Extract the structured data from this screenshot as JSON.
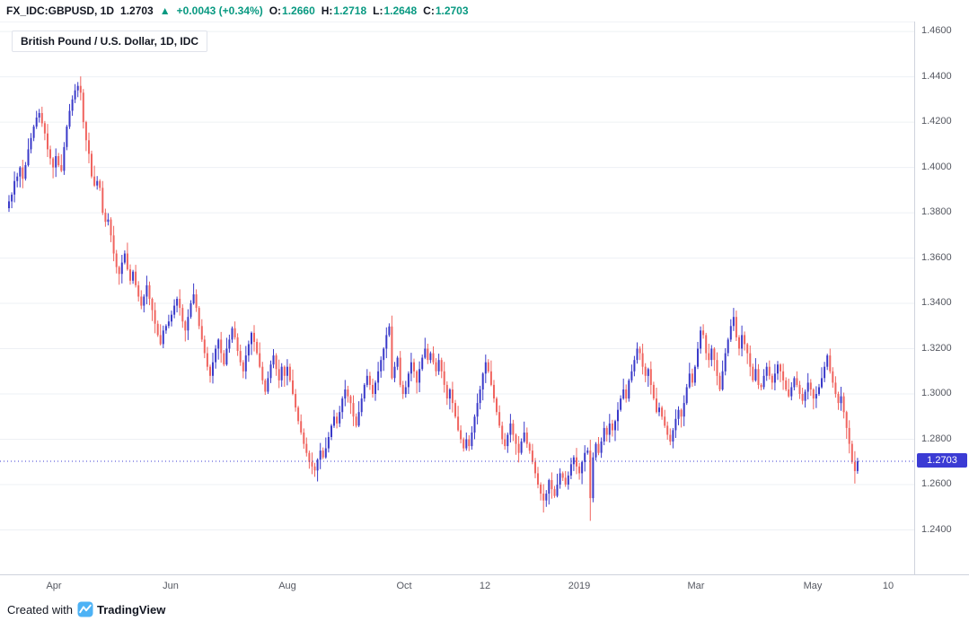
{
  "header": {
    "symbol": "FX_IDC:GBPUSD, 1D",
    "last_price": "1.2703",
    "direction_icon": "▲",
    "change": "+0.0043 (+0.34%)",
    "ohlc": [
      {
        "label": "O:",
        "value": "1.2660"
      },
      {
        "label": "H:",
        "value": "1.2718"
      },
      {
        "label": "L:",
        "value": "1.2648"
      },
      {
        "label": "C:",
        "value": "1.2703"
      }
    ]
  },
  "legend": {
    "title": "British Pound / U.S. Dollar, 1D, IDC"
  },
  "footer": {
    "created_with": "Created with",
    "brand": "TradingView"
  },
  "colors": {
    "up": "#3a3ac9",
    "down": "#f0645f",
    "grid": "#edf0f4",
    "axis_text": "#555861",
    "green": "#089981",
    "price_line": "#3b3bd4",
    "chip_bg": "#3b3bd4",
    "brand_blue": "#43a5e8"
  },
  "chart_data": {
    "type": "candlestick",
    "title": "British Pound / U.S. Dollar, 1D, IDC",
    "symbol": "GBPUSD",
    "exchange": "IDC",
    "timeframe": "1D",
    "grid": true,
    "ylim": [
      1.22,
      1.464
    ],
    "y_ticks": [
      "1.4600",
      "1.4400",
      "1.4200",
      "1.4000",
      "1.3800",
      "1.3600",
      "1.3400",
      "1.3200",
      "1.3000",
      "1.2800",
      "1.2600",
      "1.2400"
    ],
    "x_labels": [
      {
        "text": "Apr",
        "f": 0.059
      },
      {
        "text": "Jun",
        "f": 0.187
      },
      {
        "text": "Aug",
        "f": 0.314
      },
      {
        "text": "Oct",
        "f": 0.442
      },
      {
        "text": "12",
        "f": 0.53
      },
      {
        "text": "2019",
        "f": 0.634
      },
      {
        "text": "Mar",
        "f": 0.761
      },
      {
        "text": "May",
        "f": 0.889
      },
      {
        "text": "10",
        "f": 0.972
      }
    ],
    "price_line": {
      "value": 1.2703,
      "label": "1.2703"
    },
    "last_candle": {
      "open": 1.266,
      "high": 1.2718,
      "low": 1.2648,
      "close": 1.2703
    },
    "key_points": {
      "high_2018_apr": 1.4377,
      "low_2018_aug": 1.2662,
      "low_2018_dec": 1.2477,
      "low_2019_jan_flash": 1.244,
      "high_2019_mar": 1.338,
      "low_2019_may": 1.2605
    },
    "closes": [
      1.385,
      1.388,
      1.394,
      1.396,
      1.4,
      1.395,
      1.401,
      1.408,
      1.413,
      1.418,
      1.422,
      1.424,
      1.4195,
      1.415,
      1.408,
      1.404,
      1.4,
      1.405,
      1.401,
      1.3985,
      1.409,
      1.418,
      1.425,
      1.43,
      1.434,
      1.436,
      1.433,
      1.42,
      1.412,
      1.406,
      1.396,
      1.392,
      1.394,
      1.391,
      1.38,
      1.376,
      1.377,
      1.37,
      1.362,
      1.356,
      1.353,
      1.358,
      1.362,
      1.355,
      1.35,
      1.354,
      1.348,
      1.343,
      1.339,
      1.343,
      1.348,
      1.342,
      1.337,
      1.331,
      1.326,
      1.322,
      1.328,
      1.33,
      1.332,
      1.335,
      1.339,
      1.342,
      1.338,
      1.332,
      1.328,
      1.334,
      1.34,
      1.344,
      1.338,
      1.33,
      1.324,
      1.318,
      1.312,
      1.308,
      1.314,
      1.32,
      1.324,
      1.318,
      1.313,
      1.32,
      1.324,
      1.329,
      1.325,
      1.319,
      1.314,
      1.31,
      1.317,
      1.322,
      1.327,
      1.323,
      1.318,
      1.312,
      1.306,
      1.301,
      1.307,
      1.313,
      1.317,
      1.311,
      1.306,
      1.312,
      1.308,
      1.312,
      1.306,
      1.3,
      1.294,
      1.288,
      1.283,
      1.278,
      1.274,
      1.27,
      1.268,
      1.2662,
      1.271,
      1.275,
      1.272,
      1.276,
      1.281,
      1.286,
      1.29,
      1.287,
      1.292,
      1.298,
      1.302,
      1.299,
      1.296,
      1.29,
      1.286,
      1.292,
      1.298,
      1.304,
      1.308,
      1.304,
      1.3,
      1.305,
      1.31,
      1.315,
      1.32,
      1.326,
      1.3298,
      1.307,
      1.312,
      1.316,
      1.304,
      1.3,
      1.303,
      1.309,
      1.314,
      1.31,
      1.305,
      1.311,
      1.316,
      1.32,
      1.315,
      1.318,
      1.314,
      1.31,
      1.315,
      1.31,
      1.304,
      1.298,
      1.302,
      1.296,
      1.29,
      1.284,
      1.28,
      1.276,
      1.28,
      1.277,
      1.283,
      1.29,
      1.296,
      1.302,
      1.309,
      1.314,
      1.31,
      1.304,
      1.298,
      1.292,
      1.286,
      1.28,
      1.277,
      1.282,
      1.287,
      1.282,
      1.278,
      1.274,
      1.279,
      1.283,
      1.278,
      1.275,
      1.27,
      1.265,
      1.26,
      1.256,
      1.253,
      1.256,
      1.262,
      1.258,
      1.255,
      1.26,
      1.265,
      1.263,
      1.26,
      1.264,
      1.269,
      1.272,
      1.268,
      1.265,
      1.27,
      1.274,
      1.275,
      1.254,
      1.272,
      1.278,
      1.274,
      1.279,
      1.285,
      1.282,
      1.287,
      1.284,
      1.288,
      1.293,
      1.298,
      1.302,
      1.298,
      1.306,
      1.31,
      1.315,
      1.32,
      1.318,
      1.312,
      1.308,
      1.311,
      1.304,
      1.298,
      1.292,
      1.294,
      1.29,
      1.286,
      1.282,
      1.279,
      1.284,
      1.289,
      1.293,
      1.29,
      1.296,
      1.303,
      1.309,
      1.305,
      1.312,
      1.32,
      1.328,
      1.326,
      1.318,
      1.315,
      1.32,
      1.315,
      1.308,
      1.302,
      1.31,
      1.318,
      1.324,
      1.33,
      1.334,
      1.325,
      1.32,
      1.326,
      1.322,
      1.318,
      1.312,
      1.306,
      1.311,
      1.304,
      1.303,
      1.308,
      1.312,
      1.308,
      1.305,
      1.309,
      1.313,
      1.31,
      1.306,
      1.302,
      1.299,
      1.303,
      1.307,
      1.304,
      1.3,
      1.297,
      1.301,
      1.305,
      1.302,
      1.298,
      1.3,
      1.303,
      1.307,
      1.312,
      1.317,
      1.31,
      1.305,
      1.3,
      1.296,
      1.299,
      1.292,
      1.285,
      1.278,
      1.27,
      1.266,
      1.2703
    ],
    "wick_pattern": [
      0.0028,
      0.001,
      0.0042,
      0.0016,
      0.0006,
      0.0034,
      0.0014,
      0.0048,
      0.0022,
      0.0008,
      0.003,
      0.0018
    ],
    "overrides": {
      "25": {
        "h": 1.4377
      },
      "194": {
        "l": 1.2477
      },
      "211": {
        "l": 1.244
      },
      "263": {
        "h": 1.338
      },
      "307": {
        "l": 1.2605
      },
      "308": {
        "o": 1.266,
        "h": 1.2718,
        "l": 1.2648,
        "c": 1.2703
      }
    }
  }
}
